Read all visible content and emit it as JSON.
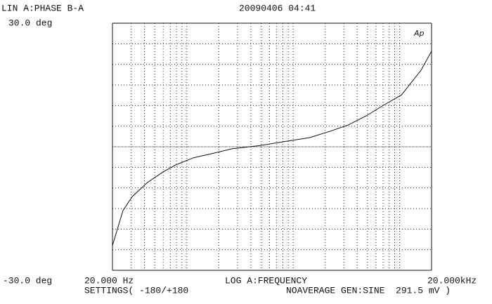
{
  "chart_data": {
    "type": "line",
    "title": "LIN A:PHASE B-A",
    "timestamp": "20090406 04:41",
    "x_label": "LOG A:FREQUENCY",
    "settings_left": "SETTINGS( -180/+180",
    "settings_right": "NOAVERAGE GEN:SINE  291.5 mV )",
    "logo": "Ap",
    "xscale": "log",
    "xlim": [
      20,
      20000
    ],
    "ylim": [
      -30,
      30
    ],
    "xticks": [
      {
        "value": 20,
        "label": "20.000 Hz"
      },
      {
        "value": 20000,
        "label": "20.000kHz"
      }
    ],
    "yticks": [
      {
        "value": 30,
        "label": "30.0 deg"
      },
      {
        "value": -30,
        "label": "-30.0 deg"
      }
    ],
    "xgrid": [
      30,
      40,
      50,
      60,
      70,
      80,
      90,
      100,
      200,
      300,
      400,
      500,
      600,
      700,
      800,
      900,
      1000,
      2000,
      3000,
      4000,
      5000,
      6000,
      7000,
      8000,
      9000,
      10000
    ],
    "ygrid": [
      -25,
      -20,
      -15,
      -10,
      -5,
      0,
      5,
      10,
      15,
      20,
      25
    ],
    "series": [
      {
        "color": "#111111",
        "x": [
          20,
          25.1,
          30.7,
          42.6,
          59.9,
          78.9,
          115,
          170,
          267,
          492,
          903,
          1420,
          2250,
          3300,
          4860,
          7100,
          10450,
          15950,
          20000
        ],
        "values": [
          -24.0,
          -15.5,
          -12.1,
          -8.7,
          -6.1,
          -4.4,
          -2.7,
          -1.7,
          -0.5,
          0.3,
          1.4,
          2.2,
          3.8,
          5.3,
          7.5,
          10.1,
          12.6,
          18.6,
          23.2
        ]
      }
    ]
  }
}
